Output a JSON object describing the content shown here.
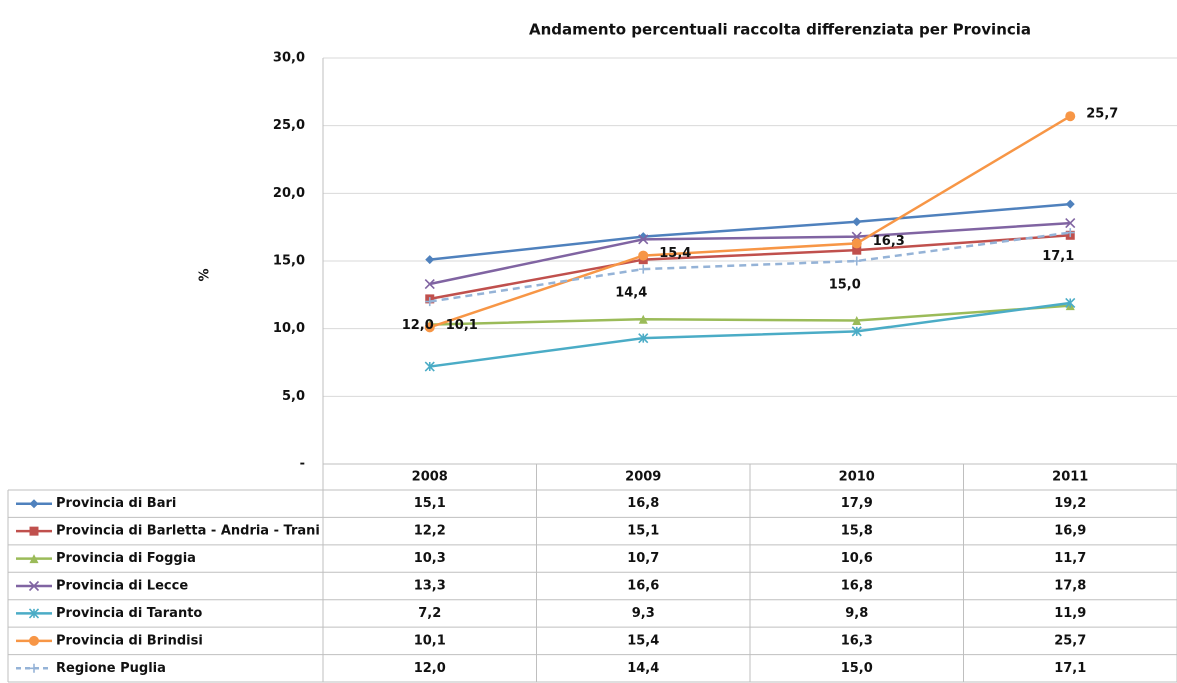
{
  "chart_data": {
    "type": "line",
    "title": "Andamento percentuali raccolta differenziata per Provincia",
    "y_label": "%",
    "categories": [
      "2008",
      "2009",
      "2010",
      "2011"
    ],
    "ylim": [
      0,
      30
    ],
    "yticks": [
      {
        "value": 0,
        "label": "-"
      },
      {
        "value": 5,
        "label": "5,0"
      },
      {
        "value": 10,
        "label": "10,0"
      },
      {
        "value": 15,
        "label": "15,0"
      },
      {
        "value": 20,
        "label": "20,0"
      },
      {
        "value": 25,
        "label": "25,0"
      },
      {
        "value": 30,
        "label": "30,0"
      }
    ],
    "grid": true,
    "series": [
      {
        "name": "Provincia di Bari",
        "color": "#4f81bd",
        "marker": "diamond",
        "values": [
          15.1,
          16.8,
          17.9,
          19.2
        ],
        "value_labels": [
          "15,1",
          "16,8",
          "17,9",
          "19,2"
        ]
      },
      {
        "name": "Provincia di Barletta - Andria - Trani",
        "color": "#c0504d",
        "marker": "square",
        "values": [
          12.2,
          15.1,
          15.8,
          16.9
        ],
        "value_labels": [
          "12,2",
          "15,1",
          "15,8",
          "16,9"
        ]
      },
      {
        "name": "Provincia di Foggia",
        "color": "#9bbb59",
        "marker": "triangle",
        "values": [
          10.3,
          10.7,
          10.6,
          11.7
        ],
        "value_labels": [
          "10,3",
          "10,7",
          "10,6",
          "11,7"
        ]
      },
      {
        "name": "Provincia di Lecce",
        "color": "#8064a2",
        "marker": "x",
        "values": [
          13.3,
          16.6,
          16.8,
          17.8
        ],
        "value_labels": [
          "13,3",
          "16,6",
          "16,8",
          "17,8"
        ]
      },
      {
        "name": "Provincia di Taranto",
        "color": "#4bacc6",
        "marker": "star",
        "values": [
          7.2,
          9.3,
          9.8,
          11.9
        ],
        "value_labels": [
          "7,2",
          "9,3",
          "9,8",
          "11,9"
        ]
      },
      {
        "name": "Provincia di Brindisi",
        "color": "#f79646",
        "marker": "circle",
        "values": [
          10.1,
          15.4,
          16.3,
          25.7
        ],
        "value_labels": [
          "10,1",
          "15,4",
          "16,3",
          "25,7"
        ],
        "data_labels": "right"
      },
      {
        "name": "Regione Puglia",
        "color": "#95b3d7",
        "marker": "plus",
        "dashed": true,
        "values": [
          12.0,
          14.4,
          15.0,
          17.1
        ],
        "value_labels": [
          "12,0",
          "14,4",
          "15,0",
          "17,1"
        ],
        "data_labels": "below"
      }
    ]
  }
}
